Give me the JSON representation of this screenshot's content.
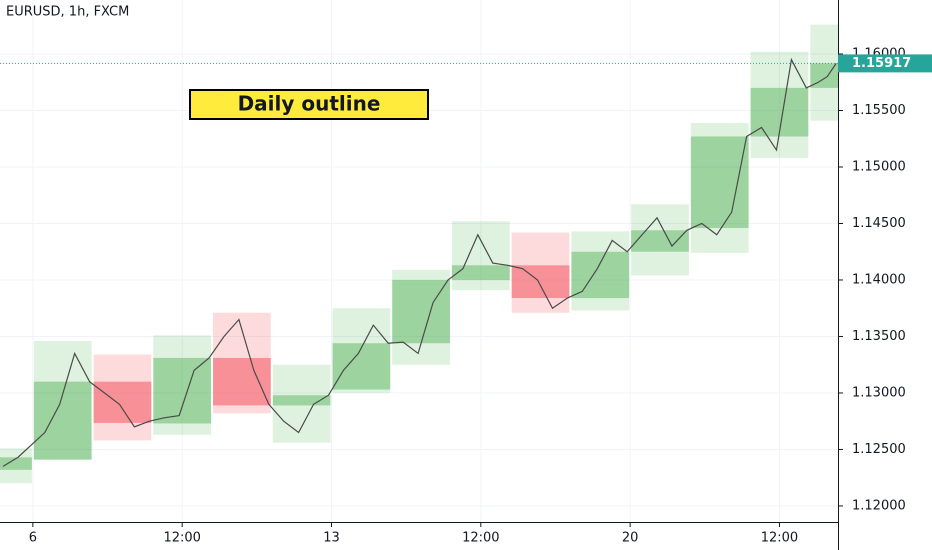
{
  "chart_data": {
    "type": "daily-outline",
    "title": "EURUSD, 1h, FXCM",
    "annotation": "Daily outline",
    "up_color": "#4caf50",
    "down_color": "#f23645",
    "line_color": "#4a4a4a",
    "last_color": "#26a69a",
    "xlim": [
      -0.55,
      13.48
    ],
    "xticks": [
      {
        "value": 0,
        "label": "6"
      },
      {
        "value": 2.5,
        "label": "12:00"
      },
      {
        "value": 5,
        "label": "13"
      },
      {
        "value": 7.5,
        "label": "12:00"
      },
      {
        "value": 10,
        "label": "20"
      },
      {
        "value": 12.5,
        "label": "12:00"
      }
    ],
    "ylim": [
      1.11858,
      1.16478
    ],
    "yticks": [
      {
        "value": 1.12,
        "label": "1.12000"
      },
      {
        "value": 1.125,
        "label": "1.12500"
      },
      {
        "value": 1.13,
        "label": "1.13000"
      },
      {
        "value": 1.135,
        "label": "1.13500"
      },
      {
        "value": 1.14,
        "label": "1.14000"
      },
      {
        "value": 1.145,
        "label": "1.14500"
      },
      {
        "value": 1.15,
        "label": "1.15000"
      },
      {
        "value": 1.155,
        "label": "1.15500"
      },
      {
        "value": 1.16,
        "label": "1.16000"
      }
    ],
    "days": [
      {
        "x": -1,
        "open": 1.1232,
        "high": 1.1251,
        "low": 1.122,
        "close": 1.1243
      },
      {
        "x": 0,
        "open": 1.1241,
        "high": 1.1346,
        "low": 1.1241,
        "close": 1.131
      },
      {
        "x": 1,
        "open": 1.131,
        "high": 1.1334,
        "low": 1.1258,
        "close": 1.12735
      },
      {
        "x": 2,
        "open": 1.1273,
        "high": 1.1351,
        "low": 1.1263,
        "close": 1.1331
      },
      {
        "x": 3,
        "open": 1.1331,
        "high": 1.1371,
        "low": 1.1282,
        "close": 1.1289
      },
      {
        "x": 4,
        "open": 1.1289,
        "high": 1.1325,
        "low": 1.1256,
        "close": 1.1298
      },
      {
        "x": 5,
        "open": 1.1303,
        "high": 1.1375,
        "low": 1.13,
        "close": 1.1344
      },
      {
        "x": 6,
        "open": 1.1344,
        "high": 1.1409,
        "low": 1.1325,
        "close": 1.14
      },
      {
        "x": 7,
        "open": 1.14,
        "high": 1.1452,
        "low": 1.1391,
        "close": 1.1413
      },
      {
        "x": 8,
        "open": 1.1413,
        "high": 1.1442,
        "low": 1.1371,
        "close": 1.1384
      },
      {
        "x": 9,
        "open": 1.1384,
        "high": 1.1443,
        "low": 1.1373,
        "close": 1.1425
      },
      {
        "x": 10,
        "open": 1.1425,
        "high": 1.1467,
        "low": 1.1404,
        "close": 1.1444
      },
      {
        "x": 11,
        "open": 1.1446,
        "high": 1.1539,
        "low": 1.1424,
        "close": 1.1527
      },
      {
        "x": 12,
        "open": 1.1527,
        "high": 1.1602,
        "low": 1.1508,
        "close": 1.157
      },
      {
        "x": 13,
        "open": 1.157,
        "high": 1.1626,
        "low": 1.1541,
        "close": 1.15917
      }
    ],
    "x": [
      -0.5,
      -0.25,
      0.2,
      0.45,
      0.7,
      0.95,
      1.2,
      1.45,
      1.7,
      1.95,
      2.2,
      2.45,
      2.7,
      2.95,
      3.2,
      3.45,
      3.7,
      3.95,
      4.2,
      4.45,
      4.7,
      4.95,
      5.2,
      5.45,
      5.7,
      5.95,
      6.2,
      6.45,
      6.7,
      6.95,
      7.2,
      7.45,
      7.7,
      7.95,
      8.2,
      8.45,
      8.7,
      8.95,
      9.2,
      9.45,
      9.7,
      9.95,
      10.2,
      10.45,
      10.7,
      10.95,
      11.2,
      11.45,
      11.7,
      11.95,
      12.2,
      12.45,
      12.7,
      12.95,
      13.15,
      13.3,
      13.45
    ],
    "values": [
      1.1235,
      1.1243,
      1.1265,
      1.129,
      1.1335,
      1.131,
      1.13,
      1.129,
      1.127,
      1.1275,
      1.1278,
      1.128,
      1.132,
      1.1331,
      1.135,
      1.1365,
      1.132,
      1.129,
      1.1275,
      1.1265,
      1.129,
      1.1298,
      1.132,
      1.1335,
      1.136,
      1.1344,
      1.1345,
      1.1335,
      1.138,
      1.14,
      1.141,
      1.144,
      1.1415,
      1.1413,
      1.141,
      1.14,
      1.1375,
      1.1384,
      1.139,
      1.141,
      1.1435,
      1.1425,
      1.144,
      1.1455,
      1.143,
      1.1444,
      1.145,
      1.144,
      1.146,
      1.1527,
      1.1535,
      1.1515,
      1.1595,
      1.157,
      1.1575,
      1.158,
      1.15917
    ],
    "last_price": 1.15917
  }
}
